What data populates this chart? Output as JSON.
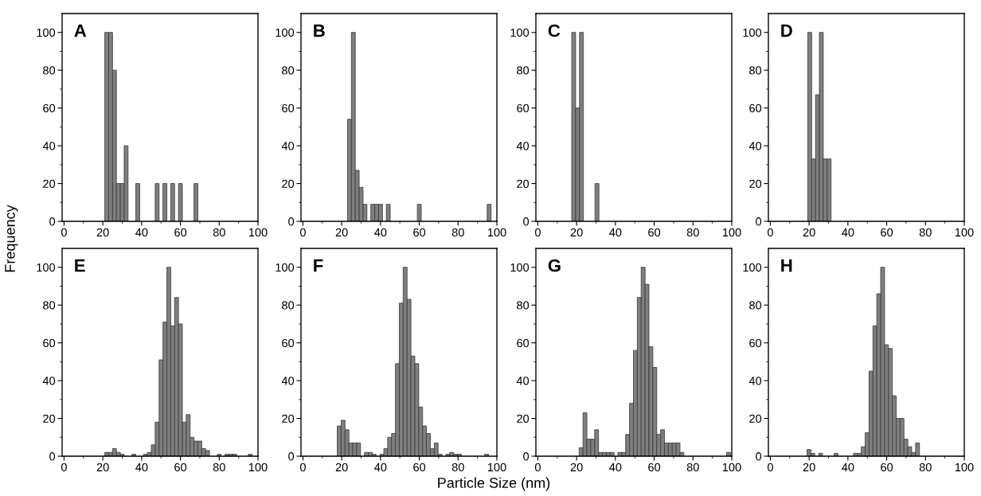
{
  "chart_data": [
    {
      "type": "histogram",
      "annotations": [
        "A"
      ],
      "ylabel": "Frequency",
      "color": "#7f7f7f",
      "xlim": [
        -1,
        100
      ],
      "ylim": [
        0,
        110
      ],
      "xticks": [
        0,
        20,
        40,
        60,
        80,
        100
      ],
      "yticks": [
        0,
        20,
        40,
        60,
        80,
        100
      ],
      "grid": false,
      "bins": [
        21,
        23,
        25,
        27,
        29,
        31,
        33,
        35,
        37,
        39,
        41,
        43,
        45,
        47,
        49,
        51,
        53,
        55,
        57,
        59,
        61,
        63,
        65,
        67,
        69
      ],
      "values": [
        100,
        100,
        80,
        20,
        20,
        40,
        0,
        0,
        20,
        0,
        0,
        0,
        0,
        20,
        0,
        20,
        0,
        20,
        0,
        20,
        0,
        0,
        0,
        20
      ]
    },
    {
      "type": "histogram",
      "annotations": [
        "B"
      ],
      "color": "#7f7f7f",
      "xlim": [
        -1,
        100
      ],
      "ylim": [
        0,
        110
      ],
      "xticks": [
        0,
        20,
        40,
        60,
        80,
        100
      ],
      "yticks": [
        0,
        20,
        40,
        60,
        80,
        100
      ],
      "grid": false,
      "bins": [
        23,
        25,
        27,
        29,
        31,
        33,
        35,
        37,
        39,
        41,
        43,
        45,
        47,
        49,
        51,
        53,
        55,
        57,
        59,
        61,
        63,
        65,
        67,
        69,
        71,
        73,
        75,
        77,
        79,
        81,
        83,
        85,
        87,
        89,
        91,
        93,
        95,
        97
      ],
      "values": [
        54,
        100,
        27,
        18,
        9,
        0,
        9,
        9,
        9,
        0,
        9,
        0,
        0,
        0,
        0,
        0,
        0,
        0,
        9,
        0,
        0,
        0,
        0,
        0,
        0,
        0,
        0,
        0,
        0,
        0,
        0,
        0,
        0,
        0,
        0,
        0,
        9
      ]
    },
    {
      "type": "histogram",
      "annotations": [
        "C"
      ],
      "color": "#7f7f7f",
      "xlim": [
        -1,
        100
      ],
      "ylim": [
        0,
        110
      ],
      "xticks": [
        0,
        20,
        40,
        60,
        80,
        100
      ],
      "yticks": [
        0,
        20,
        40,
        60,
        80,
        100
      ],
      "grid": false,
      "bins": [
        17.5,
        19.5,
        21.5,
        23.5,
        25.5,
        27.5,
        29.5,
        31.5
      ],
      "values": [
        100,
        60,
        100,
        0,
        0,
        0,
        20
      ]
    },
    {
      "type": "histogram",
      "annotations": [
        "D"
      ],
      "color": "#7f7f7f",
      "xlim": [
        -1,
        100
      ],
      "ylim": [
        0,
        110
      ],
      "xticks": [
        0,
        20,
        40,
        60,
        80,
        100
      ],
      "yticks": [
        0,
        20,
        40,
        60,
        80,
        100
      ],
      "grid": false,
      "bins": [
        19.3,
        21.3,
        23.3,
        25.3,
        27.3,
        29.3,
        31.3
      ],
      "values": [
        100,
        33,
        67,
        100,
        33,
        33
      ]
    },
    {
      "type": "histogram",
      "annotations": [
        "E"
      ],
      "color": "#7f7f7f",
      "xlim": [
        -1,
        100
      ],
      "ylim": [
        0,
        110
      ],
      "xticks": [
        0,
        20,
        40,
        60,
        80,
        100
      ],
      "yticks": [
        0,
        20,
        40,
        60,
        80,
        100
      ],
      "grid": false,
      "bins": [
        21,
        23,
        25,
        27,
        29,
        31,
        33,
        35,
        37,
        39,
        41,
        43,
        45,
        47,
        49,
        51,
        53,
        55,
        57,
        59,
        61,
        63,
        65,
        67,
        69,
        71,
        73,
        75,
        77,
        79,
        81,
        83,
        85,
        87,
        89,
        91,
        93,
        95,
        97
      ],
      "values": [
        2,
        2,
        4,
        2,
        1,
        0,
        0,
        1,
        0,
        0,
        1,
        2,
        6,
        18,
        51,
        71,
        100,
        69,
        84,
        70,
        18,
        22,
        10,
        8,
        8,
        4,
        3,
        0,
        0,
        1,
        0,
        1,
        1,
        1,
        0,
        0,
        0,
        1
      ]
    },
    {
      "type": "histogram",
      "annotations": [
        "F"
      ],
      "xlabel": "Particle Size (nm)",
      "color": "#7f7f7f",
      "xlim": [
        -1,
        100
      ],
      "ylim": [
        0,
        110
      ],
      "xticks": [
        0,
        20,
        40,
        60,
        80,
        100
      ],
      "yticks": [
        0,
        20,
        40,
        60,
        80,
        100
      ],
      "grid": false,
      "bins": [
        17.7,
        19.7,
        21.7,
        23.7,
        25.7,
        27.7,
        29.7,
        31.7,
        33.7,
        35.7,
        37.7,
        39.7,
        41.7,
        43.7,
        45.7,
        47.7,
        49.7,
        51.7,
        53.7,
        55.7,
        57.7,
        59.7,
        61.7,
        63.7,
        65.7,
        67.7,
        69.7,
        71.7,
        73.7,
        75.7,
        77.7,
        79.7,
        81.7,
        83.7,
        85.7,
        87.7,
        89.7,
        91.7,
        93.7,
        95.7
      ],
      "values": [
        16,
        19,
        14,
        7,
        7,
        7,
        0,
        2,
        2,
        1,
        0,
        1,
        4,
        10,
        12,
        49,
        81,
        100,
        83,
        53,
        49,
        26,
        16,
        12,
        4,
        7,
        1,
        0,
        1,
        2,
        1,
        1,
        0,
        0,
        0,
        0,
        0,
        0,
        1
      ]
    },
    {
      "type": "histogram",
      "annotations": [
        "G"
      ],
      "color": "#7f7f7f",
      "xlim": [
        -1,
        100
      ],
      "ylim": [
        0,
        110
      ],
      "xticks": [
        0,
        20,
        40,
        60,
        80,
        100
      ],
      "yticks": [
        0,
        20,
        40,
        60,
        80,
        100
      ],
      "grid": false,
      "bins": [
        21.3,
        23.3,
        25.3,
        27.3,
        29.3,
        31.3,
        33.3,
        35.3,
        37.3,
        39.3,
        41.3,
        43.3,
        45.3,
        47.3,
        49.3,
        51.3,
        53.3,
        55.3,
        57.3,
        59.3,
        61.3,
        63.3,
        65.3,
        67.3,
        69.3,
        71.3,
        73.3,
        75.3,
        77.3,
        79.3,
        81.3,
        83.3,
        85.3,
        87.3,
        89.3,
        91.3,
        93.3,
        95.3,
        97.3,
        99.3
      ],
      "values": [
        4.5,
        23,
        9,
        9,
        14,
        2,
        2,
        2,
        2,
        0,
        2,
        2,
        11.5,
        28,
        56,
        84,
        100,
        91,
        58,
        47,
        11.5,
        14,
        7,
        7,
        7,
        7,
        2,
        0,
        0,
        0,
        0,
        0,
        0,
        0,
        0,
        0,
        0,
        0,
        2
      ]
    },
    {
      "type": "histogram",
      "annotations": [
        "H"
      ],
      "color": "#7f7f7f",
      "xlim": [
        -1,
        100
      ],
      "ylim": [
        0,
        110
      ],
      "xticks": [
        0,
        20,
        40,
        60,
        80,
        100
      ],
      "yticks": [
        0,
        20,
        40,
        60,
        80,
        100
      ],
      "grid": false,
      "bins": [
        18.9,
        20.9,
        22.9,
        24.9,
        26.9,
        28.9,
        30.9,
        32.9,
        34.9,
        36.9,
        38.9,
        40.9,
        42.9,
        44.9,
        46.9,
        48.9,
        50.9,
        52.9,
        54.9,
        56.9,
        58.9,
        60.9,
        62.9,
        64.9,
        66.9,
        68.9,
        70.9,
        72.9,
        74.9,
        76.9
      ],
      "values": [
        3.5,
        1.5,
        0,
        1.5,
        0,
        0,
        0,
        1.5,
        0,
        0,
        0,
        0,
        1.5,
        1.5,
        5,
        12.5,
        45,
        69,
        86,
        100,
        59,
        57,
        32,
        20,
        20,
        9,
        5,
        2,
        7
      ]
    }
  ]
}
